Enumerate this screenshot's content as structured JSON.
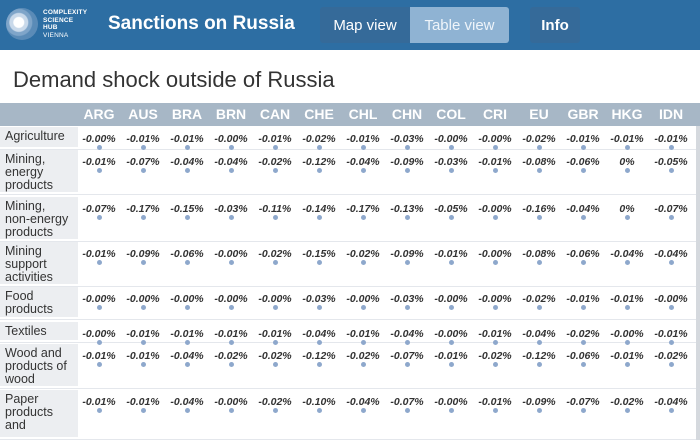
{
  "header": {
    "logo_lines": [
      "COMPLEXITY",
      "SCIENCE",
      "HUB",
      "VIENNA"
    ],
    "title": "Sanctions on Russia",
    "map_view_label": "Map view",
    "table_view_label": "Table view",
    "info_label": "Info"
  },
  "page": {
    "title": "Demand shock outside of Russia"
  },
  "table": {
    "columns": [
      "ARG",
      "AUS",
      "BRA",
      "BRN",
      "CAN",
      "CHE",
      "CHL",
      "CHN",
      "COL",
      "CRI",
      "EU",
      "GBR",
      "HKG",
      "IDN"
    ],
    "rows": [
      {
        "label": "Agriculture",
        "values": [
          "-0.00%",
          "-0.01%",
          "-0.01%",
          "-0.00%",
          "-0.01%",
          "-0.02%",
          "-0.01%",
          "-0.03%",
          "-0.00%",
          "-0.00%",
          "-0.02%",
          "-0.01%",
          "-0.01%",
          "-0.01%"
        ]
      },
      {
        "label": "Mining, energy products",
        "values": [
          "-0.01%",
          "-0.07%",
          "-0.04%",
          "-0.04%",
          "-0.02%",
          "-0.12%",
          "-0.04%",
          "-0.09%",
          "-0.03%",
          "-0.01%",
          "-0.08%",
          "-0.06%",
          "0%",
          "-0.05%"
        ]
      },
      {
        "label": "Mining, non-energy products",
        "values": [
          "-0.07%",
          "-0.17%",
          "-0.15%",
          "-0.03%",
          "-0.11%",
          "-0.14%",
          "-0.17%",
          "-0.13%",
          "-0.05%",
          "-0.00%",
          "-0.16%",
          "-0.04%",
          "0%",
          "-0.07%"
        ]
      },
      {
        "label": "Mining support activities",
        "values": [
          "-0.01%",
          "-0.09%",
          "-0.06%",
          "-0.00%",
          "-0.02%",
          "-0.15%",
          "-0.02%",
          "-0.09%",
          "-0.01%",
          "-0.00%",
          "-0.08%",
          "-0.06%",
          "-0.04%",
          "-0.04%"
        ]
      },
      {
        "label": "Food products",
        "values": [
          "-0.00%",
          "-0.00%",
          "-0.00%",
          "-0.00%",
          "-0.00%",
          "-0.03%",
          "-0.00%",
          "-0.03%",
          "-0.00%",
          "-0.00%",
          "-0.02%",
          "-0.01%",
          "-0.01%",
          "-0.00%"
        ]
      },
      {
        "label": "Textiles",
        "values": [
          "-0.00%",
          "-0.01%",
          "-0.01%",
          "-0.01%",
          "-0.01%",
          "-0.04%",
          "-0.01%",
          "-0.04%",
          "-0.00%",
          "-0.01%",
          "-0.04%",
          "-0.02%",
          "-0.00%",
          "-0.01%"
        ]
      },
      {
        "label": "Wood and products of wood",
        "values": [
          "-0.01%",
          "-0.01%",
          "-0.04%",
          "-0.02%",
          "-0.02%",
          "-0.12%",
          "-0.02%",
          "-0.07%",
          "-0.01%",
          "-0.02%",
          "-0.12%",
          "-0.06%",
          "-0.01%",
          "-0.02%"
        ]
      },
      {
        "label": "Paper products and",
        "values": [
          "-0.01%",
          "-0.01%",
          "-0.04%",
          "-0.00%",
          "-0.02%",
          "-0.10%",
          "-0.04%",
          "-0.07%",
          "-0.00%",
          "-0.01%",
          "-0.09%",
          "-0.07%",
          "-0.02%",
          "-0.04%"
        ]
      }
    ]
  },
  "colors": {
    "topbar": "#2d6ea3",
    "dot": "#8ea8cc",
    "header_row": "#a7b7c6"
  }
}
